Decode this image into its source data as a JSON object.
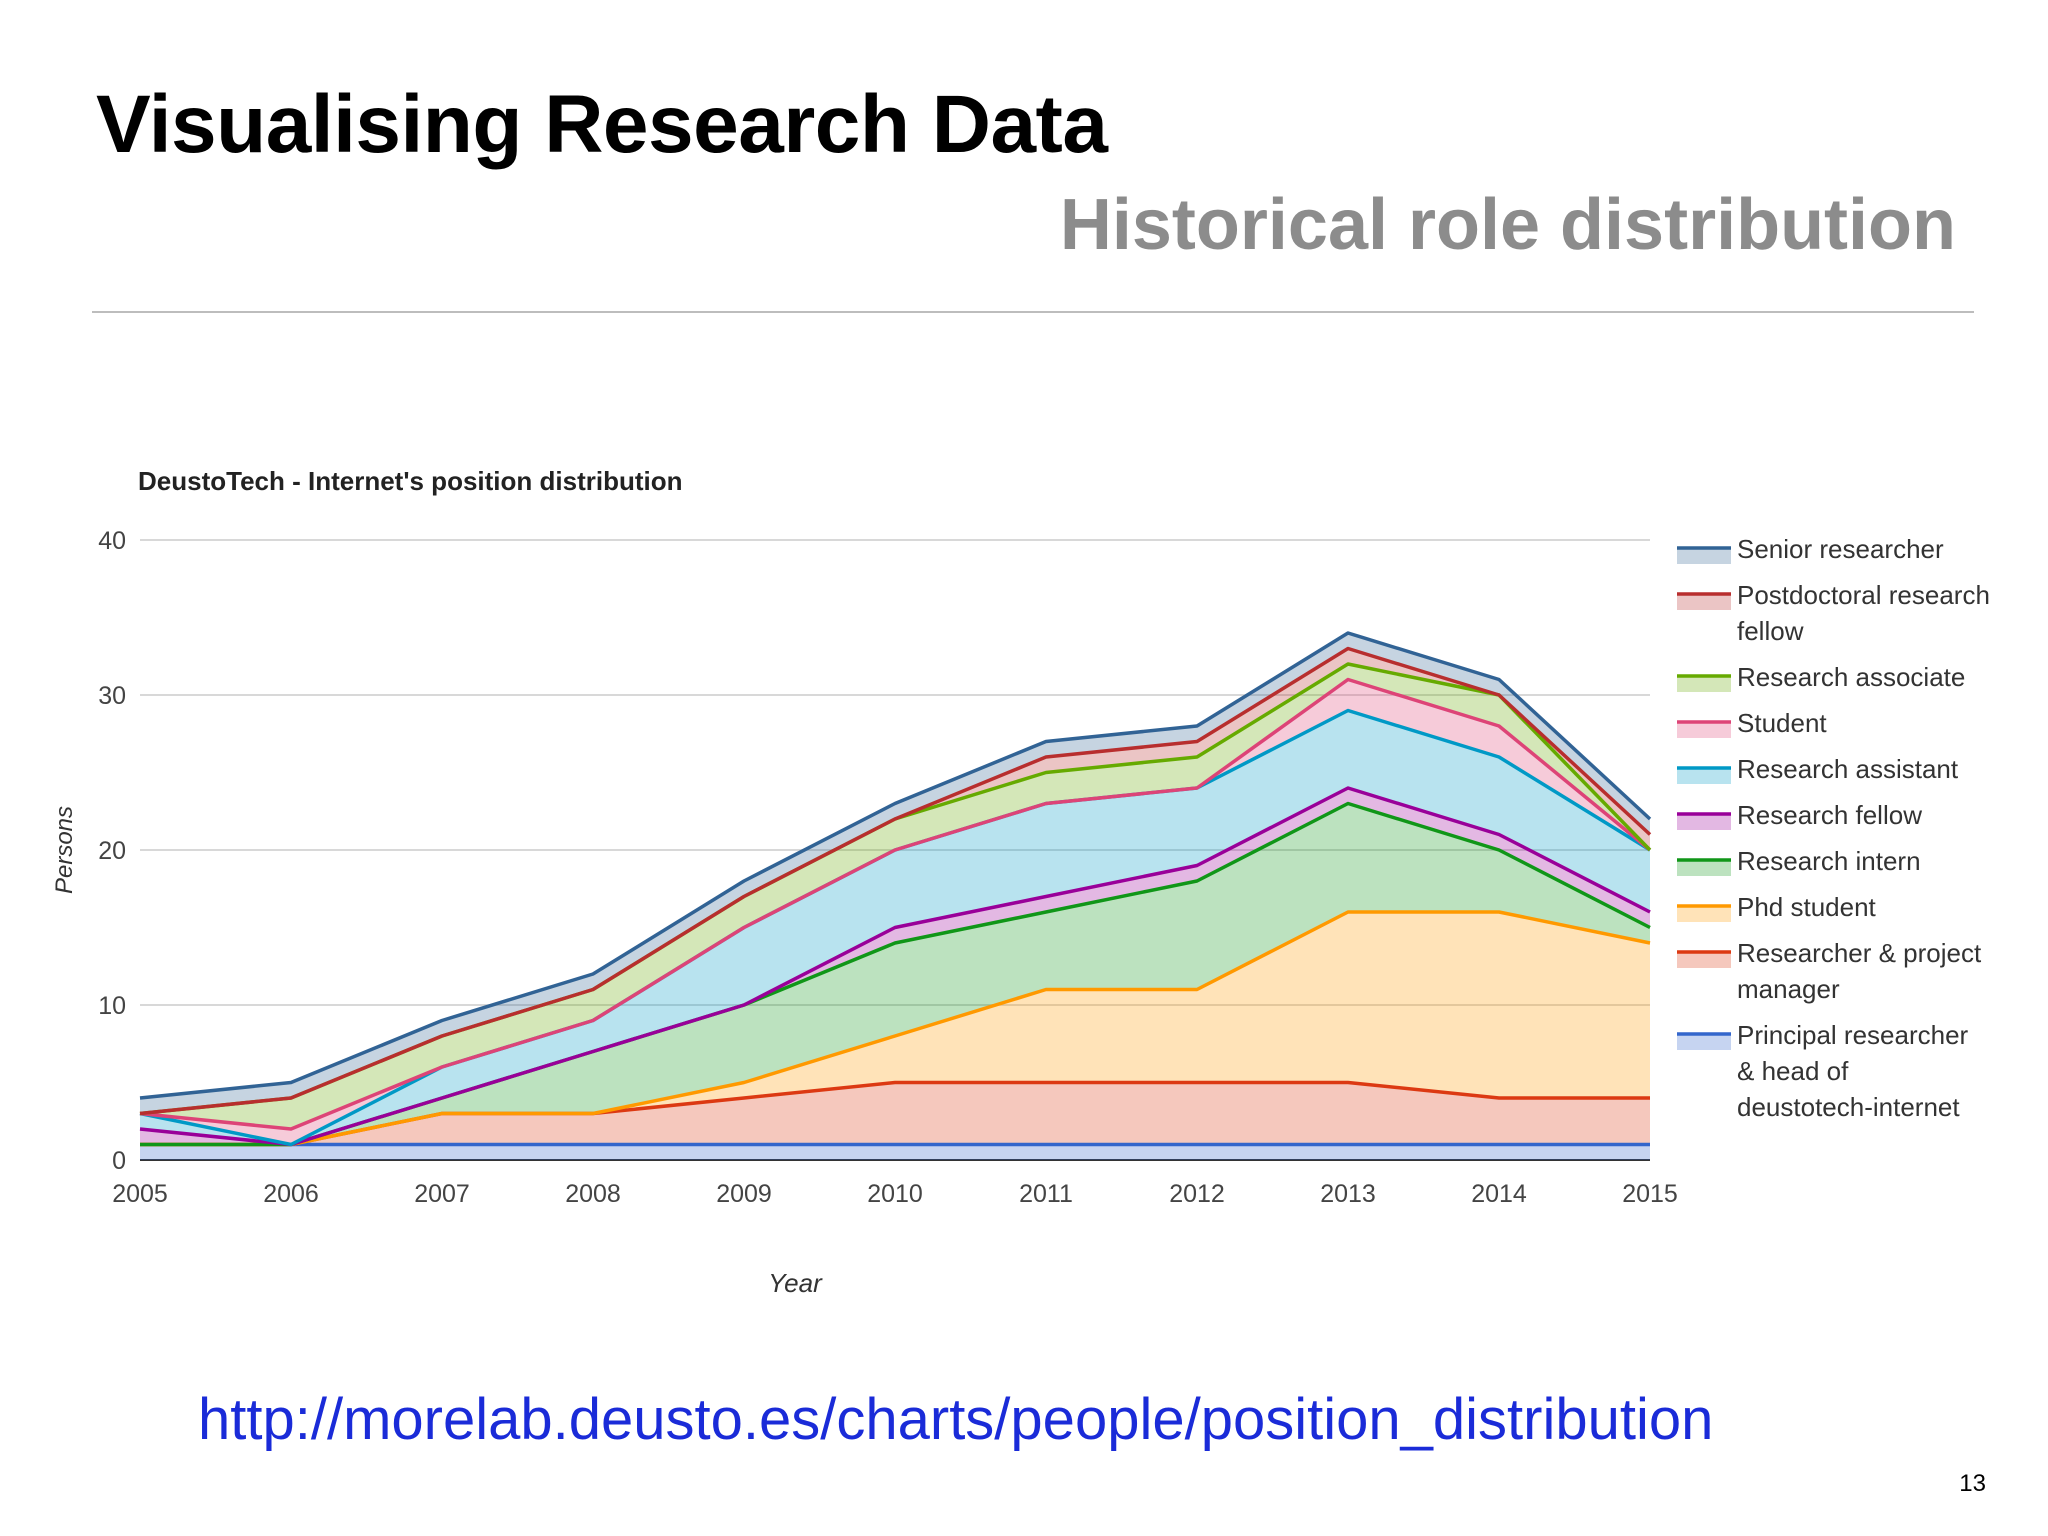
{
  "slide": {
    "title": "Visualising Research Data",
    "subtitle": "Historical role distribution",
    "url": "http://morelab.deusto.es/charts/people/position_distribution",
    "page_number": "13"
  },
  "chart_data": {
    "type": "area",
    "stacked": true,
    "title": "DeustoTech - Internet's position distribution",
    "xlabel": "Year",
    "ylabel": "Persons",
    "x": [
      2005,
      2006,
      2007,
      2008,
      2009,
      2010,
      2011,
      2012,
      2013,
      2014,
      2015
    ],
    "ylim": [
      0,
      40
    ],
    "yticks": [
      0,
      10,
      20,
      30,
      40
    ],
    "grid": true,
    "legend_position": "right",
    "series": [
      {
        "name": "Principal researcher & head of deustotech-internet",
        "color": "#3366cc",
        "values": [
          1,
          1,
          1,
          1,
          1,
          1,
          1,
          1,
          1,
          1,
          1
        ]
      },
      {
        "name": "Researcher & project manager",
        "color": "#dc3912",
        "values": [
          0,
          0,
          2,
          2,
          3,
          4,
          4,
          4,
          4,
          3,
          3
        ]
      },
      {
        "name": "Phd student",
        "color": "#ff9900",
        "values": [
          0,
          0,
          0,
          0,
          1,
          3,
          6,
          6,
          11,
          12,
          10
        ]
      },
      {
        "name": "Research intern",
        "color": "#109618",
        "values": [
          0,
          0,
          1,
          4,
          5,
          6,
          5,
          7,
          7,
          4,
          1
        ]
      },
      {
        "name": "Research fellow",
        "color": "#990099",
        "values": [
          1,
          0,
          0,
          0,
          0,
          1,
          1,
          1,
          1,
          1,
          1
        ]
      },
      {
        "name": "Research assistant",
        "color": "#0099c6",
        "values": [
          1,
          0,
          2,
          2,
          5,
          5,
          6,
          5,
          5,
          5,
          4
        ]
      },
      {
        "name": "Student",
        "color": "#dd4477",
        "values": [
          0,
          1,
          0,
          0,
          0,
          0,
          0,
          0,
          2,
          2,
          0
        ]
      },
      {
        "name": "Research associate",
        "color": "#66aa00",
        "values": [
          0,
          2,
          2,
          2,
          2,
          2,
          2,
          2,
          1,
          2,
          0
        ]
      },
      {
        "name": "Postdoctoral research fellow",
        "color": "#b82e2e",
        "values": [
          0,
          0,
          0,
          0,
          0,
          0,
          1,
          1,
          1,
          0,
          1
        ]
      },
      {
        "name": "Senior researcher",
        "color": "#316395",
        "values": [
          1,
          1,
          1,
          1,
          1,
          1,
          1,
          1,
          1,
          1,
          1
        ]
      }
    ],
    "legend_order": [
      "Senior researcher",
      "Postdoctoral research fellow",
      "Research associate",
      "Student",
      "Research assistant",
      "Research fellow",
      "Research intern",
      "Phd student",
      "Researcher & project manager",
      "Principal researcher & head of deustotech-internet"
    ]
  }
}
